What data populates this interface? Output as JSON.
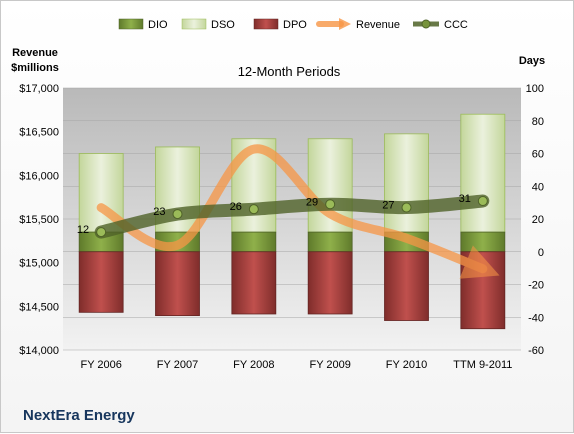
{
  "company": "NextEra Energy",
  "chart_data": {
    "type": "bar",
    "title": "12-Month Periods",
    "categories": [
      "FY 2006",
      "FY 2007",
      "FY 2008",
      "FY 2009",
      "FY 2010",
      "TTM 9-2011"
    ],
    "left_axis": {
      "label_line1": "Revenue",
      "label_line2": "$millions",
      "ylim": [
        14000,
        17000
      ],
      "ticks": [
        "$14,000",
        "$14,500",
        "$15,000",
        "$15,500",
        "$16,000",
        "$16,500",
        "$17,000"
      ]
    },
    "right_axis": {
      "label": "Days",
      "ylim": [
        -60,
        100
      ],
      "ticks": [
        "-60",
        "-40",
        "-20",
        "0",
        "20",
        "40",
        "60",
        "80",
        "100"
      ]
    },
    "series": [
      {
        "name": "DIO",
        "type": "stacked_bar",
        "axis": "right",
        "color": "#77933c",
        "values": [
          12,
          12,
          12,
          12,
          12,
          12
        ]
      },
      {
        "name": "DSO",
        "type": "stacked_bar",
        "axis": "right",
        "color": "#d7e4bd",
        "values": [
          48,
          52,
          57,
          57,
          60,
          72
        ]
      },
      {
        "name": "DPO",
        "type": "negative_bar",
        "axis": "right",
        "color": "#943634",
        "values": [
          37,
          39,
          38,
          38,
          42,
          47
        ]
      },
      {
        "name": "Revenue",
        "type": "line",
        "axis": "left",
        "color": "#f79646",
        "values": [
          15630,
          15200,
          16300,
          15560,
          15280,
          14930
        ]
      },
      {
        "name": "CCC",
        "type": "line",
        "axis": "right",
        "color": "#4f6228",
        "values": [
          12,
          23,
          26,
          29,
          27,
          31
        ],
        "labels": [
          "12",
          "23",
          "26",
          "29",
          "27",
          "31"
        ]
      }
    ],
    "grid": true,
    "legend_position": "top"
  }
}
